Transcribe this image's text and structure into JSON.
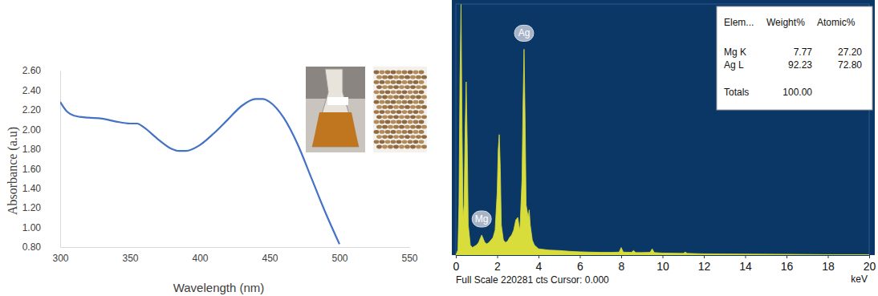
{
  "chart_data": [
    {
      "type": "line",
      "x_label": "Wavelength (nm)",
      "y_label": "Absorbance (a.u)",
      "x": [
        300,
        305,
        310,
        320,
        330,
        340,
        350,
        355,
        360,
        370,
        380,
        385,
        390,
        400,
        410,
        420,
        430,
        440,
        445,
        450,
        460,
        470,
        480,
        490,
        500
      ],
      "values": [
        2.28,
        2.18,
        2.14,
        2.12,
        2.11,
        2.08,
        2.06,
        2.06,
        2.02,
        1.9,
        1.8,
        1.78,
        1.78,
        1.84,
        1.96,
        2.1,
        2.24,
        2.31,
        2.31,
        2.28,
        2.12,
        1.85,
        1.5,
        1.15,
        0.83
      ],
      "color": "#4472c4",
      "xlim": [
        300,
        550
      ],
      "xticks": [
        300,
        350,
        400,
        450,
        500,
        550
      ],
      "ylim": [
        0.8,
        2.6
      ],
      "yticks": [
        {
          "value": 0.8,
          "label": "0.80"
        },
        {
          "value": 1.0,
          "label": "1.00"
        },
        {
          "value": 1.2,
          "label": "1.20"
        },
        {
          "value": 1.4,
          "label": "1.40"
        },
        {
          "value": 1.6,
          "label": "1.60"
        },
        {
          "value": 1.8,
          "label": "1.80"
        },
        {
          "value": 2.0,
          "label": "2.00"
        },
        {
          "value": 2.2,
          "label": "2.20"
        },
        {
          "value": 2.4,
          "label": "2.40"
        },
        {
          "value": 2.6,
          "label": "2.60"
        }
      ],
      "grid": false
    },
    {
      "type": "area",
      "x_label": "keV",
      "x": [
        0,
        0.1,
        0.15,
        0.2,
        0.25,
        0.3,
        0.35,
        0.4,
        0.45,
        0.5,
        0.55,
        0.6,
        0.7,
        0.8,
        0.9,
        1.0,
        1.1,
        1.2,
        1.25,
        1.3,
        1.4,
        1.5,
        1.6,
        1.7,
        1.8,
        1.9,
        2.0,
        2.05,
        2.1,
        2.15,
        2.2,
        2.3,
        2.4,
        2.5,
        2.6,
        2.7,
        2.8,
        2.9,
        3.0,
        3.05,
        3.1,
        3.2,
        3.25,
        3.3,
        3.35,
        3.4,
        3.5,
        3.55,
        3.6,
        3.7,
        3.8,
        4.0,
        4.5,
        5.0,
        5.5,
        6.0,
        6.5,
        7.0,
        7.5,
        7.9,
        8.0,
        8.1,
        8.5,
        8.6,
        8.7,
        9.0,
        9.4,
        9.5,
        9.6,
        10,
        11,
        11.1,
        11.2,
        12,
        14,
        16,
        18,
        20
      ],
      "values": [
        0,
        4400,
        44100,
        154200,
        220000,
        110100,
        33000,
        44100,
        110100,
        152000,
        99100,
        26400,
        8800,
        6600,
        7700,
        8800,
        11000,
        15400,
        17600,
        15400,
        11000,
        9900,
        11000,
        13200,
        15400,
        22000,
        55100,
        92500,
        105700,
        77100,
        26400,
        13200,
        11000,
        12100,
        15400,
        17600,
        22000,
        30800,
        33000,
        26400,
        22000,
        66100,
        132200,
        180600,
        121200,
        44100,
        33000,
        39700,
        26400,
        13200,
        8800,
        5500,
        4400,
        4000,
        3300,
        2900,
        2600,
        2400,
        2400,
        2600,
        6600,
        2600,
        2400,
        4000,
        2200,
        2200,
        2400,
        5500,
        2200,
        1800,
        1500,
        2600,
        1500,
        1100,
        900,
        700,
        400,
        400
      ],
      "color": "#d8dd3c",
      "xlim": [
        0,
        20
      ],
      "xticks": [
        0,
        2,
        4,
        6,
        8,
        10,
        12,
        14,
        16,
        18,
        20
      ],
      "ylim": [
        0,
        220281
      ],
      "tick_labels": "x",
      "grid": false,
      "annotations": [
        {
          "text": "Mg",
          "x": 1.25
        },
        {
          "text": "Ag",
          "x": 3.3
        }
      ],
      "table": {
        "columns": [
          "Elem...",
          "Weight%",
          "Atomic%"
        ],
        "rows": [
          [
            "Mg K",
            "7.77",
            "27.20"
          ],
          [
            "Ag L",
            "92.23",
            "72.80"
          ]
        ],
        "totals": [
          "Totals",
          "100.00"
        ]
      },
      "note": "Full Scale 220281 cts Cursor: 0.000"
    }
  ]
}
